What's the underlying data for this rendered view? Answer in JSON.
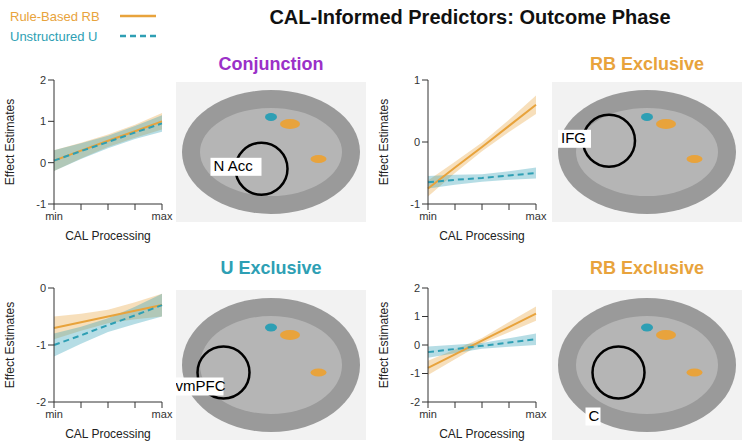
{
  "title": "CAL-Informed Predictors: Outcome Phase",
  "chart_data": [
    {
      "type": "line",
      "title": "Conjunction",
      "annotations": [
        "N Acc"
      ],
      "xlabel": "CAL Processing",
      "ylabel": "Effect Estimates",
      "categories": [
        "min",
        null,
        null,
        null,
        "max"
      ],
      "ylim": [
        -1,
        2
      ],
      "yticks": [
        -1,
        0,
        1,
        2
      ],
      "series": [
        {
          "name": "Rule-Based RB",
          "color": "#E8A33C",
          "line_style": "solid",
          "values": [
            0.05,
            0.29,
            0.53,
            0.76,
            1.0
          ],
          "lower": [
            -0.2,
            0.1,
            0.38,
            0.6,
            0.8
          ],
          "upper": [
            0.3,
            0.48,
            0.68,
            0.92,
            1.2
          ]
        },
        {
          "name": "Unstructured U",
          "color": "#2E9FB4",
          "line_style": "dashed",
          "values": [
            0.05,
            0.28,
            0.5,
            0.73,
            0.95
          ],
          "lower": [
            -0.2,
            0.09,
            0.35,
            0.57,
            0.75
          ],
          "upper": [
            0.3,
            0.47,
            0.65,
            0.89,
            1.15
          ]
        }
      ]
    },
    {
      "type": "line",
      "title": "RB Exclusive",
      "annotations": [
        "IFG"
      ],
      "xlabel": "CAL Processing",
      "ylabel": "Effect Estimates",
      "categories": [
        "min",
        null,
        null,
        null,
        "max"
      ],
      "ylim": [
        -1,
        1
      ],
      "yticks": [
        -1,
        0,
        1
      ],
      "series": [
        {
          "name": "Rule-Based RB",
          "color": "#E8A33C",
          "line_style": "solid",
          "values": [
            -0.75,
            -0.41,
            -0.08,
            0.26,
            0.6
          ],
          "lower": [
            -0.88,
            -0.5,
            -0.15,
            0.16,
            0.45
          ],
          "upper": [
            -0.62,
            -0.32,
            -0.01,
            0.36,
            0.75
          ]
        },
        {
          "name": "Unstructured U",
          "color": "#2E9FB4",
          "line_style": "dashed",
          "values": [
            -0.65,
            -0.61,
            -0.58,
            -0.54,
            -0.5
          ],
          "lower": [
            -0.75,
            -0.69,
            -0.64,
            -0.61,
            -0.59
          ],
          "upper": [
            -0.55,
            -0.53,
            -0.52,
            -0.47,
            -0.41
          ]
        }
      ]
    },
    {
      "type": "line",
      "title": "U Exclusive",
      "annotations": [
        "vmPFC"
      ],
      "xlabel": "CAL Processing",
      "ylabel": "Effect Estimates",
      "categories": [
        "min",
        null,
        null,
        null,
        "max"
      ],
      "ylim": [
        -2,
        0
      ],
      "yticks": [
        -2,
        -1,
        0
      ],
      "series": [
        {
          "name": "Rule-Based RB",
          "color": "#E8A33C",
          "line_style": "solid",
          "values": [
            -0.7,
            -0.6,
            -0.5,
            -0.4,
            -0.3
          ],
          "lower": [
            -0.9,
            -0.75,
            -0.62,
            -0.55,
            -0.5
          ],
          "upper": [
            -0.5,
            -0.45,
            -0.38,
            -0.25,
            -0.1
          ]
        },
        {
          "name": "Unstructured U",
          "color": "#2E9FB4",
          "line_style": "dashed",
          "values": [
            -1.0,
            -0.83,
            -0.65,
            -0.48,
            -0.3
          ],
          "lower": [
            -1.2,
            -0.98,
            -0.77,
            -0.63,
            -0.5
          ],
          "upper": [
            -0.8,
            -0.68,
            -0.53,
            -0.33,
            -0.1
          ]
        }
      ]
    },
    {
      "type": "line",
      "title": "RB Exclusive",
      "annotations": [
        "C"
      ],
      "xlabel": "CAL Processing",
      "ylabel": "Effect Estimates",
      "categories": [
        "min",
        null,
        null,
        null,
        "max"
      ],
      "ylim": [
        -2,
        2
      ],
      "yticks": [
        -2,
        -1,
        0,
        1,
        2
      ],
      "series": [
        {
          "name": "Rule-Based RB",
          "color": "#E8A33C",
          "line_style": "solid",
          "values": [
            -0.8,
            -0.33,
            0.15,
            0.63,
            1.1
          ],
          "lower": [
            -1.05,
            -0.5,
            0.05,
            0.45,
            0.85
          ],
          "upper": [
            -0.55,
            -0.16,
            0.25,
            0.81,
            1.35
          ]
        },
        {
          "name": "Unstructured U",
          "color": "#2E9FB4",
          "line_style": "dashed",
          "values": [
            -0.25,
            -0.14,
            -0.03,
            0.09,
            0.2
          ],
          "lower": [
            -0.45,
            -0.29,
            -0.13,
            -0.06,
            0.0
          ],
          "upper": [
            -0.05,
            0.01,
            0.07,
            0.24,
            0.4
          ]
        }
      ]
    }
  ]
}
